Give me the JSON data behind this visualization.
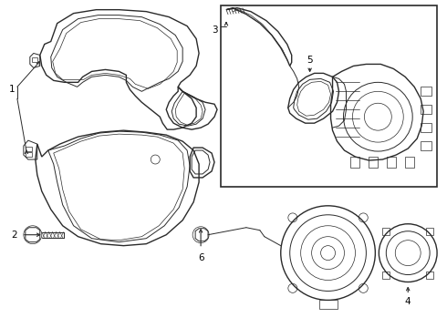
{
  "background_color": "#ffffff",
  "line_color": "#2a2a2a",
  "label_color": "#000000",
  "fig_width": 4.9,
  "fig_height": 3.6,
  "dpi": 100,
  "font_size": 7.5
}
